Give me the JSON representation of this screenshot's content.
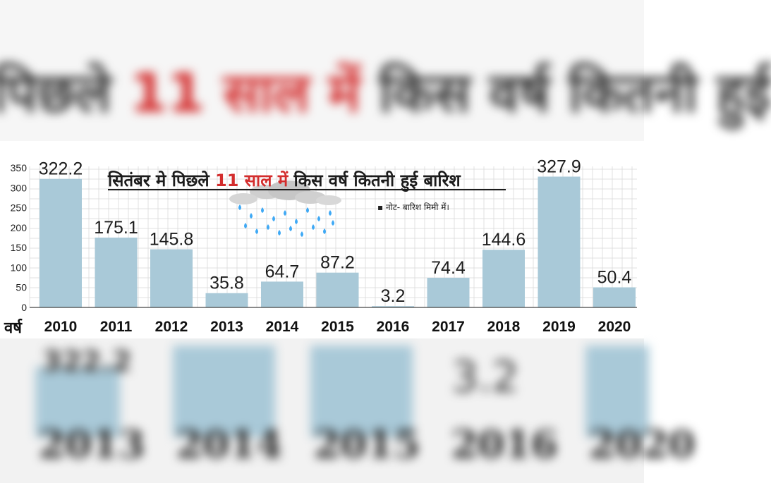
{
  "chart_data": {
    "type": "bar",
    "title_prefix": "सितंबर मे पिछले ",
    "title_highlight": "11 साल में",
    "title_suffix": " किस वर्ष कितनी हुई बारिश",
    "note": "▪ नोट- बारिश मिमी में।",
    "xlabel": "वर्ष",
    "ylabel": "",
    "ylim": [
      0,
      350
    ],
    "yticks": [
      0,
      50,
      100,
      150,
      200,
      250,
      300,
      350
    ],
    "categories": [
      "2010",
      "2011",
      "2012",
      "2013",
      "2014",
      "2015",
      "2016",
      "2017",
      "2018",
      "2019",
      "2020"
    ],
    "values": [
      322.2,
      175.1,
      145.8,
      35.8,
      64.7,
      87.2,
      3.2,
      74.4,
      144.6,
      327.9,
      50.4
    ],
    "value_labels": [
      "322.2",
      "175.1",
      "145.8",
      "35.8",
      "64.7",
      "87.2",
      "3.2",
      "74.4",
      "144.6",
      "327.9",
      "50.4"
    ],
    "grid": true,
    "colors": {
      "bar": "#a9c9d8",
      "title": "#1c1c1c",
      "highlight": "#d32d2d",
      "grid": "#d9d9d9",
      "drop": "#3fa9f5",
      "cloud": "#c9c9c9"
    }
  },
  "background": {
    "top_blur_prefix": "पिछले ",
    "top_blur_highlight": "11 साल में",
    "top_blur_suffix": " किस वर्ष कितनी हुई",
    "bottom_blur_values": [
      "322.2",
      "3.2"
    ],
    "bottom_blur_years": [
      "2013",
      "2014",
      "2015",
      "2016",
      "2020"
    ]
  }
}
